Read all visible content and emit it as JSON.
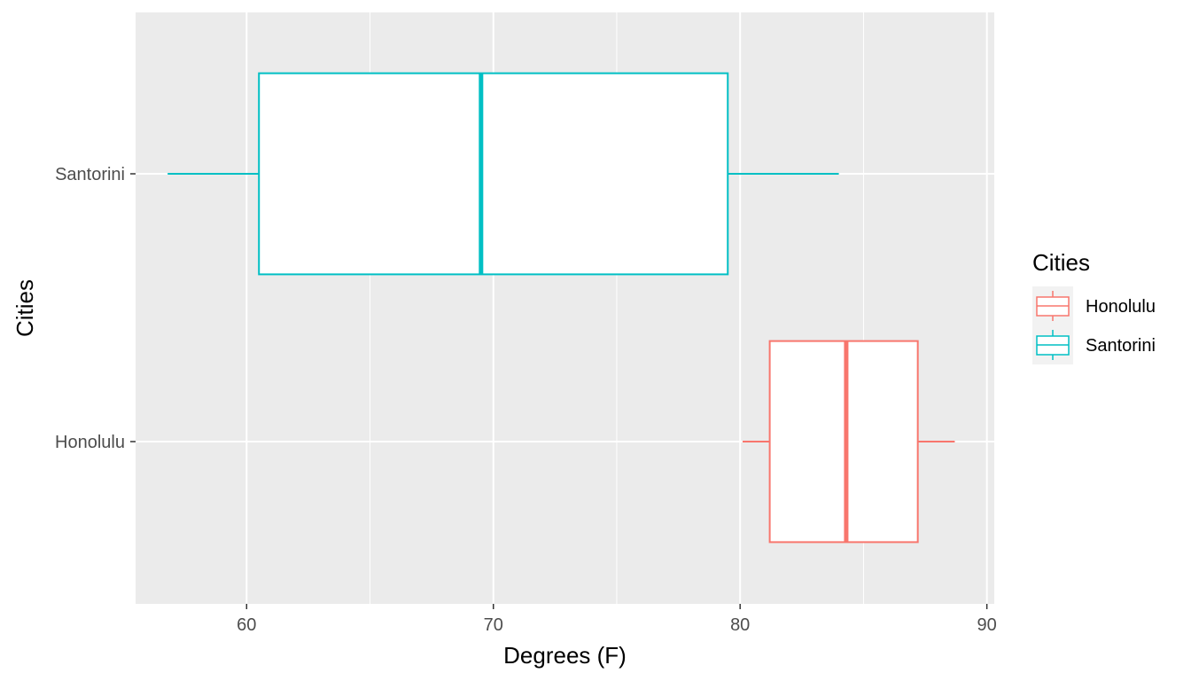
{
  "chart_data": {
    "type": "boxplot",
    "orientation": "horizontal",
    "xlabel": "Degrees (F)",
    "ylabel": "Cities",
    "xlim": [
      55.5,
      90.3
    ],
    "x_ticks": [
      60,
      70,
      80,
      90
    ],
    "x_minor_ticks": [
      65,
      75,
      85
    ],
    "categories": [
      "Santorini",
      "Honolulu"
    ],
    "grid": true,
    "series": [
      {
        "name": "Santorini",
        "color": "#00BFC4",
        "min": 56.8,
        "q1": 60.5,
        "median": 69.5,
        "q3": 79.5,
        "max": 84.0
      },
      {
        "name": "Honolulu",
        "color": "#F8766D",
        "min": 80.1,
        "q1": 81.2,
        "median": 84.3,
        "q3": 87.2,
        "max": 88.7
      }
    ],
    "legend": {
      "title": "Cities",
      "position": "right",
      "items": [
        {
          "label": "Honolulu",
          "color": "#F8766D"
        },
        {
          "label": "Santorini",
          "color": "#00BFC4"
        }
      ]
    },
    "panel_background": "#EBEBEB",
    "grid_color": "#FFFFFF"
  }
}
